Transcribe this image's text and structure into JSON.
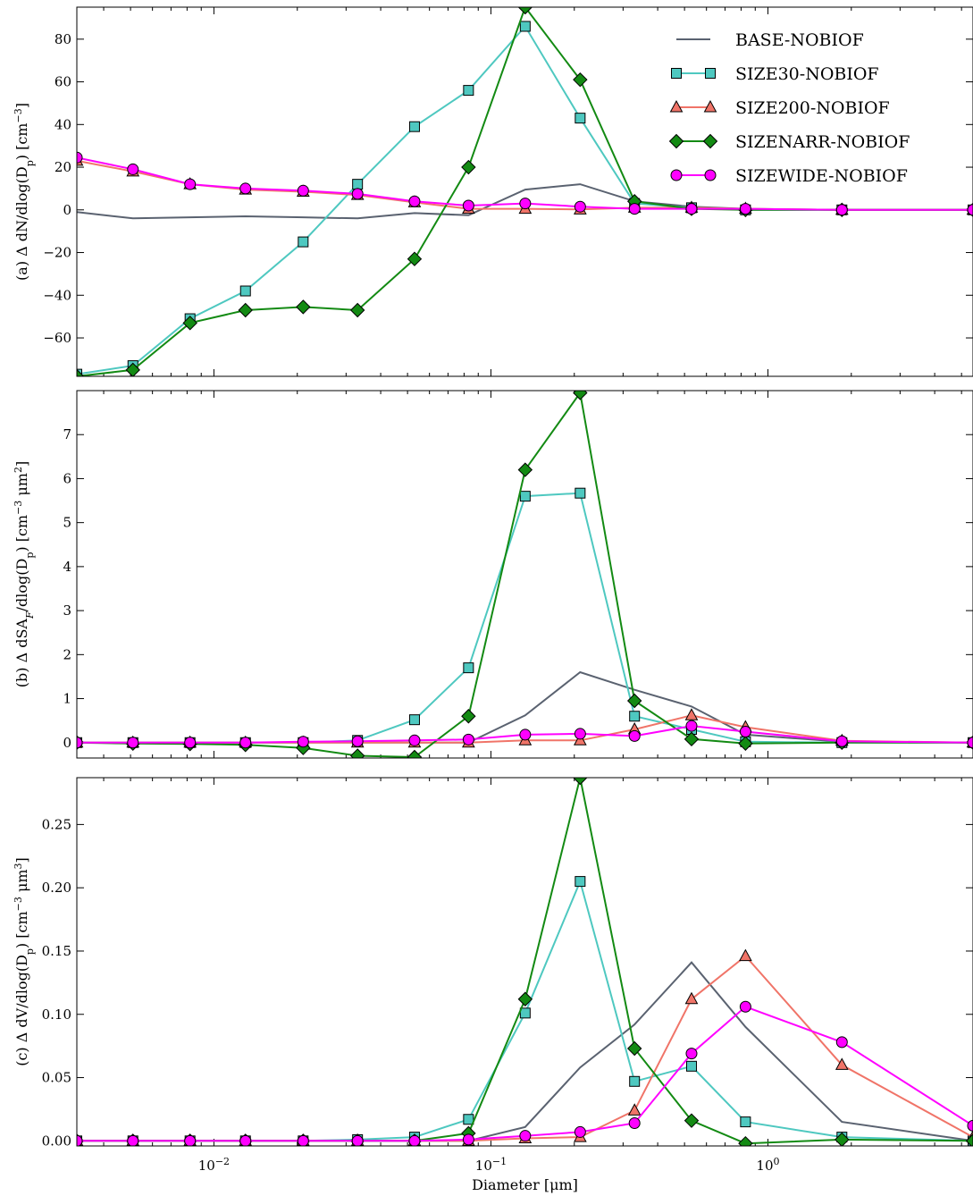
{
  "chart_data": [
    {
      "type": "line",
      "panel": "a",
      "ylabel": "(a) Δ dN/dlog(D_p) [cm^-3]",
      "ylabel_parts": {
        "pre": "(a) Δ dN/dlog(D",
        "sub": "p",
        "mid": ") [cm",
        "sup": "−3",
        "post": "]"
      },
      "xscale": "log",
      "xlim": [
        0.0032,
        5.5
      ],
      "ylim": [
        -78,
        95
      ],
      "yticks": [
        -60,
        -40,
        -20,
        0,
        20,
        40,
        60,
        80
      ],
      "ytick_labels": [
        "−60",
        "−40",
        "−20",
        "0",
        "20",
        "40",
        "60",
        "80"
      ],
      "legend": "top-right",
      "x": [
        0.0032,
        0.0051,
        0.0082,
        0.013,
        0.021,
        0.033,
        0.053,
        0.083,
        0.133,
        0.21,
        0.33,
        0.53,
        0.83,
        1.85,
        5.5
      ],
      "series": [
        {
          "name": "BASE-NOBIOF",
          "color": "#5a6270",
          "marker": "none",
          "values": [
            -1,
            -4,
            -3.5,
            -3,
            -3.5,
            -4,
            -1.5,
            -2.5,
            9.5,
            12,
            4,
            1.5,
            0.5,
            0,
            0
          ]
        },
        {
          "name": "SIZE30-NOBIOF",
          "color": "#4ec8c0",
          "marker": "square",
          "values": [
            -77,
            -73,
            -51,
            -38,
            -15,
            12,
            39,
            56,
            86,
            43,
            3,
            1,
            0,
            0,
            0
          ]
        },
        {
          "name": "SIZE200-NOBIOF",
          "color": "#f07468",
          "marker": "triangle",
          "values": [
            23,
            18,
            12,
            9.5,
            8.5,
            7,
            3.5,
            0.5,
            0.5,
            0.2,
            1,
            1,
            0.5,
            0,
            0
          ]
        },
        {
          "name": "SIZENARR-NOBIOF",
          "color": "#138a13",
          "marker": "diamond",
          "values": [
            -78,
            -75,
            -53,
            -47,
            -45.5,
            -47,
            -23,
            20,
            95,
            61,
            4,
            0.5,
            0,
            0,
            0
          ]
        },
        {
          "name": "SIZEWIDE-NOBIOF",
          "color": "#ff00ff",
          "marker": "circle",
          "values": [
            24.5,
            19,
            12,
            10,
            9,
            7.5,
            4,
            2,
            3,
            1.5,
            0.5,
            0.5,
            0.5,
            0,
            0
          ]
        }
      ]
    },
    {
      "type": "line",
      "panel": "b",
      "ylabel": "(b) Δ dSA_F/dlog(D_p) [cm^-3 μm^2]",
      "ylabel_parts": {
        "pre": "(b) Δ dSA",
        "sub1": "F",
        "mid1": "/dlog(D",
        "sub2": "p",
        "mid2": ") [cm",
        "sup1": "−3",
        "mid3": " μm",
        "sup2": "2",
        "post": "]"
      },
      "xscale": "log",
      "xlim": [
        0.0032,
        5.5
      ],
      "ylim": [
        -0.35,
        8.0
      ],
      "yticks": [
        0,
        1,
        2,
        3,
        4,
        5,
        6,
        7
      ],
      "ytick_labels": [
        "0",
        "1",
        "2",
        "3",
        "4",
        "5",
        "6",
        "7"
      ],
      "x": [
        0.0032,
        0.0051,
        0.0082,
        0.013,
        0.021,
        0.033,
        0.053,
        0.083,
        0.133,
        0.21,
        0.33,
        0.53,
        0.83,
        1.85,
        5.5
      ],
      "series": [
        {
          "name": "BASE-NOBIOF",
          "color": "#5a6270",
          "marker": "none",
          "values": [
            0,
            0,
            0,
            0,
            0,
            0,
            0,
            0,
            0.62,
            1.6,
            1.2,
            0.82,
            0.18,
            0.02,
            0
          ]
        },
        {
          "name": "SIZE30-NOBIOF",
          "color": "#4ec8c0",
          "marker": "square",
          "values": [
            0,
            0,
            0,
            0,
            0,
            0.05,
            0.52,
            1.7,
            5.6,
            5.67,
            0.6,
            0.3,
            0.02,
            0,
            0
          ]
        },
        {
          "name": "SIZE200-NOBIOF",
          "color": "#f07468",
          "marker": "triangle",
          "values": [
            0,
            0,
            0,
            0,
            0,
            0,
            0,
            0,
            0.05,
            0.05,
            0.3,
            0.62,
            0.35,
            0.04,
            0
          ]
        },
        {
          "name": "SIZENARR-NOBIOF",
          "color": "#138a13",
          "marker": "diamond",
          "values": [
            0,
            -0.02,
            -0.03,
            -0.05,
            -0.12,
            -0.3,
            -0.33,
            0.6,
            6.2,
            7.95,
            0.95,
            0.08,
            -0.02,
            0,
            0
          ]
        },
        {
          "name": "SIZEWIDE-NOBIOF",
          "color": "#ff00ff",
          "marker": "circle",
          "values": [
            0,
            0,
            0,
            0,
            0.02,
            0.03,
            0.05,
            0.07,
            0.18,
            0.2,
            0.15,
            0.38,
            0.25,
            0.03,
            0
          ]
        }
      ]
    },
    {
      "type": "line",
      "panel": "c",
      "ylabel": "(c) Δ dV/dlog(D_p) [cm^-3 μm^3]",
      "ylabel_parts": {
        "pre": "(c) Δ dV/dlog(D",
        "sub": "p",
        "mid": ") [cm",
        "sup1": "−3",
        "mid2": " μm",
        "sup2": "3",
        "post": "]"
      },
      "xlabel": "Diameter [μm]",
      "xscale": "log",
      "xlim": [
        0.0032,
        5.5
      ],
      "ylim": [
        -0.004,
        0.287
      ],
      "yticks": [
        0,
        0.05,
        0.1,
        0.15,
        0.2,
        0.25
      ],
      "ytick_labels": [
        "0.00",
        "0.05",
        "0.10",
        "0.15",
        "0.20",
        "0.25"
      ],
      "xticks": [
        0.01,
        0.1,
        1
      ],
      "xtick_labels": [
        {
          "base": "10",
          "exp": "−2"
        },
        {
          "base": "10",
          "exp": "−1"
        },
        {
          "base": "10",
          "exp": "0"
        }
      ],
      "x": [
        0.0032,
        0.0051,
        0.0082,
        0.013,
        0.021,
        0.033,
        0.053,
        0.083,
        0.133,
        0.21,
        0.33,
        0.53,
        0.83,
        1.85,
        5.5
      ],
      "series": [
        {
          "name": "BASE-NOBIOF",
          "color": "#5a6270",
          "marker": "none",
          "values": [
            0,
            0,
            0,
            0,
            0,
            0,
            0,
            0,
            0.011,
            0.058,
            0.092,
            0.141,
            0.09,
            0.015,
            0
          ]
        },
        {
          "name": "SIZE30-NOBIOF",
          "color": "#4ec8c0",
          "marker": "square",
          "values": [
            0,
            0,
            0,
            0,
            0,
            0.001,
            0.003,
            0.017,
            0.101,
            0.205,
            0.047,
            0.059,
            0.015,
            0.003,
            0
          ]
        },
        {
          "name": "SIZE200-NOBIOF",
          "color": "#f07468",
          "marker": "triangle",
          "values": [
            0,
            0,
            0,
            0,
            0,
            0,
            0,
            0,
            0.002,
            0.003,
            0.024,
            0.112,
            0.146,
            0.06,
            0.003
          ]
        },
        {
          "name": "SIZENARR-NOBIOF",
          "color": "#138a13",
          "marker": "diamond",
          "values": [
            0,
            0,
            0,
            0,
            0,
            0,
            0,
            0.006,
            0.112,
            0.287,
            0.073,
            0.016,
            -0.002,
            0.001,
            0
          ]
        },
        {
          "name": "SIZEWIDE-NOBIOF",
          "color": "#ff00ff",
          "marker": "circle",
          "values": [
            0,
            0,
            0,
            0,
            0,
            0,
            0,
            0.001,
            0.004,
            0.007,
            0.014,
            0.069,
            0.106,
            0.078,
            0.012
          ]
        }
      ]
    }
  ]
}
